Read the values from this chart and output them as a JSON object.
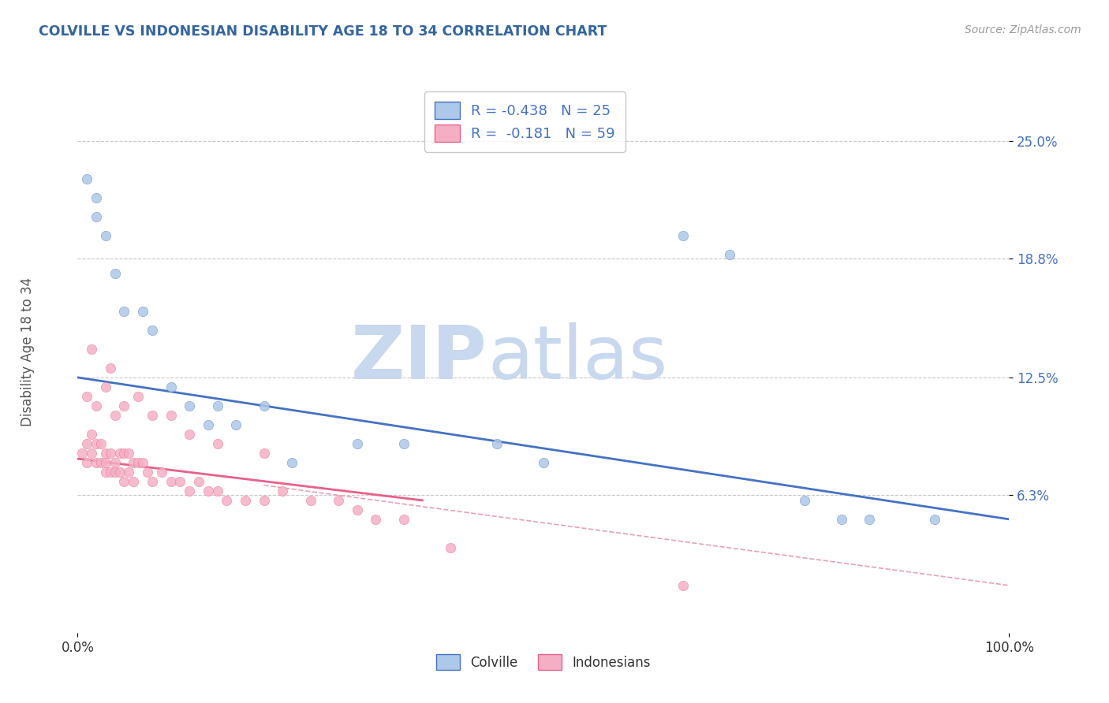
{
  "title": "COLVILLE VS INDONESIAN DISABILITY AGE 18 TO 34 CORRELATION CHART",
  "source_text": "Source: ZipAtlas.com",
  "ylabel": "Disability Age 18 to 34",
  "xlim": [
    0,
    100
  ],
  "ylim": [
    -1.0,
    28.0
  ],
  "x_tick_labels": [
    "0.0%",
    "100.0%"
  ],
  "y_ticks": [
    6.3,
    12.5,
    18.8,
    25.0
  ],
  "y_tick_labels": [
    "6.3%",
    "12.5%",
    "18.8%",
    "25.0%"
  ],
  "colville_fill_color": "#adc8e8",
  "indonesian_fill_color": "#f5afc5",
  "colville_line_color": "#4472c4",
  "indonesian_line_color": "#e8608a",
  "dashed_line_color": "#e8a0b8",
  "legend_text_color": "#4472c4",
  "axis_text_color": "#4472c4",
  "colville_r": -0.438,
  "colville_n": 25,
  "indonesian_r": -0.181,
  "indonesian_n": 59,
  "colville_line_x": [
    0,
    100
  ],
  "colville_line_y": [
    12.5,
    5.0
  ],
  "indonesian_line_x": [
    0,
    37
  ],
  "indonesian_line_y": [
    8.2,
    6.0
  ],
  "dashed_line_x": [
    20,
    100
  ],
  "dashed_line_y": [
    6.8,
    1.5
  ],
  "colville_x": [
    1,
    2,
    2,
    3,
    4,
    5,
    7,
    8,
    10,
    12,
    14,
    15,
    17,
    20,
    23,
    30,
    35,
    45,
    50,
    65,
    70,
    78,
    82,
    85,
    92
  ],
  "colville_y": [
    23,
    22,
    21,
    20,
    18,
    16,
    16,
    15,
    12,
    11,
    10,
    11,
    10,
    11,
    8,
    9,
    9,
    9,
    8,
    20,
    19,
    6,
    5,
    5,
    5
  ],
  "indonesian_x": [
    0.5,
    1.0,
    1.0,
    1.5,
    1.5,
    2.0,
    2.0,
    2.5,
    2.5,
    3.0,
    3.0,
    3.0,
    3.5,
    3.5,
    4.0,
    4.0,
    4.5,
    4.5,
    5.0,
    5.0,
    5.5,
    5.5,
    6.0,
    6.0,
    6.5,
    7.0,
    7.5,
    8.0,
    9.0,
    10.0,
    11.0,
    12.0,
    13.0,
    14.0,
    15.0,
    16.0,
    18.0,
    20.0,
    22.0,
    25.0,
    28.0,
    30.0,
    32.0,
    35.0,
    40.0,
    1.0,
    2.0,
    3.0,
    4.0,
    5.0,
    8.0,
    10.0,
    12.0,
    15.0,
    20.0,
    1.5,
    3.5,
    6.5,
    65.0
  ],
  "indonesian_y": [
    8.5,
    9.0,
    8.0,
    9.5,
    8.5,
    9.0,
    8.0,
    9.0,
    8.0,
    8.5,
    8.0,
    7.5,
    8.5,
    7.5,
    8.0,
    7.5,
    8.5,
    7.5,
    8.5,
    7.0,
    8.5,
    7.5,
    8.0,
    7.0,
    8.0,
    8.0,
    7.5,
    7.0,
    7.5,
    7.0,
    7.0,
    6.5,
    7.0,
    6.5,
    6.5,
    6.0,
    6.0,
    6.0,
    6.5,
    6.0,
    6.0,
    5.5,
    5.0,
    5.0,
    3.5,
    11.5,
    11.0,
    12.0,
    10.5,
    11.0,
    10.5,
    10.5,
    9.5,
    9.0,
    8.5,
    14.0,
    13.0,
    11.5,
    1.5
  ],
  "watermark_zip": "ZIP",
  "watermark_atlas": "atlas",
  "watermark_color": "#c8d8ee",
  "background_color": "#ffffff",
  "grid_color": "#c8c8c8",
  "title_color": "#3465a0",
  "source_color": "#999999"
}
